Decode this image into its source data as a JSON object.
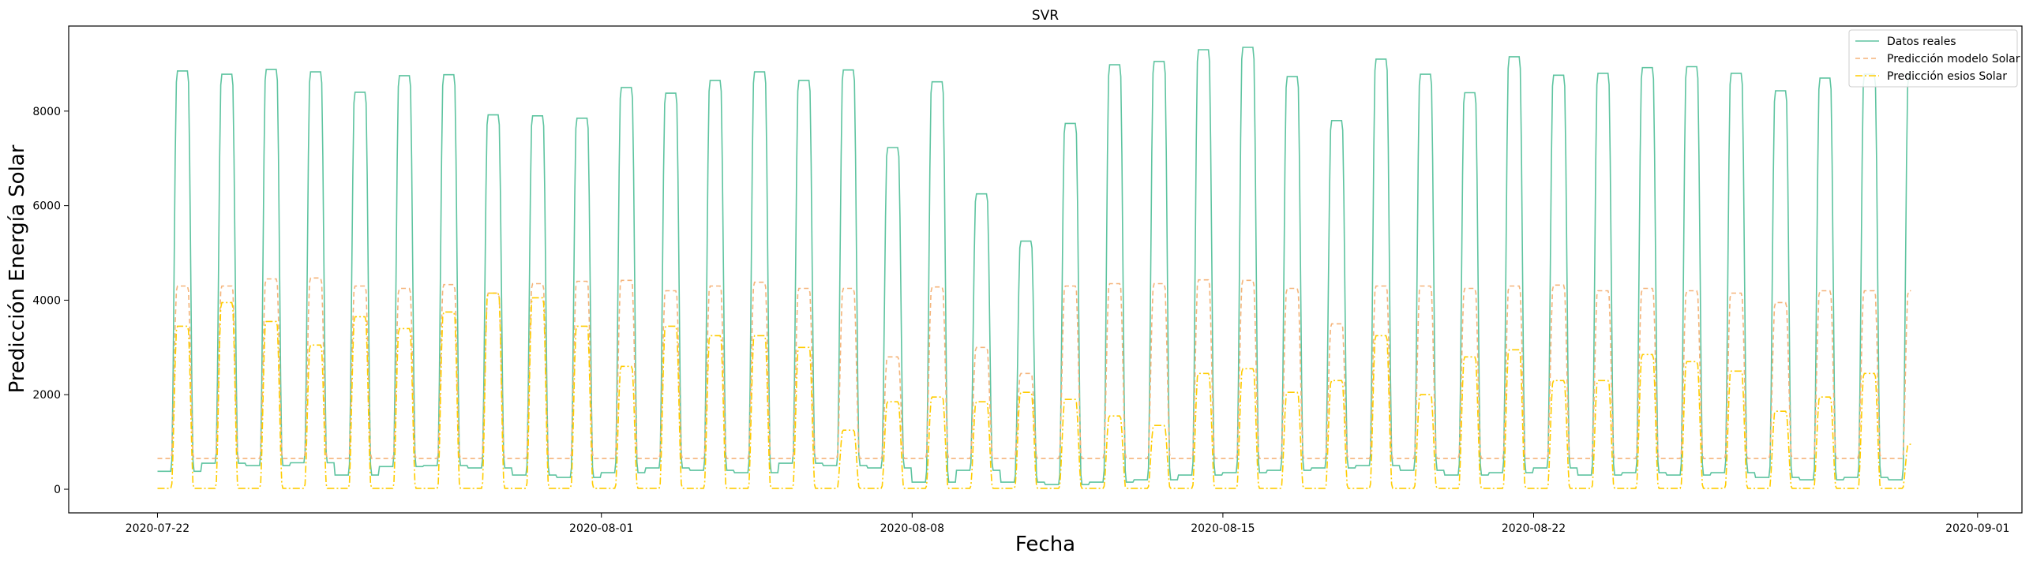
{
  "chart_data": {
    "type": "line",
    "title": "SVR",
    "xlabel": "Fecha",
    "ylabel": "Predicción Energía Solar",
    "x_start": "2020-07-22",
    "x_end": "2020-08-30",
    "xlim": [
      "2020-07-20",
      "2020-09-02"
    ],
    "ylim": [
      -500,
      9800
    ],
    "x_ticks": [
      "2020-07-22",
      "2020-08-01",
      "2020-08-08",
      "2020-08-15",
      "2020-08-22",
      "2020-09-01"
    ],
    "y_ticks": [
      0,
      2000,
      4000,
      6000,
      8000
    ],
    "grid": false,
    "legend_position": "top-right",
    "series": [
      {
        "name": "Datos reales",
        "color": "#5ec4a0",
        "style": "solid",
        "night_min": [
          380,
          550,
          500,
          560,
          300,
          480,
          500,
          450,
          300,
          250,
          350,
          450,
          400,
          350,
          550,
          500,
          450,
          150,
          400,
          150,
          100,
          150,
          200,
          300,
          350,
          400,
          450,
          500,
          400,
          300,
          350,
          450,
          300,
          350,
          300,
          350,
          250,
          200,
          250,
          200
        ],
        "day_peak": [
          8850,
          8780,
          8880,
          8830,
          8400,
          8750,
          8770,
          7920,
          7900,
          7850,
          8500,
          8380,
          8650,
          8830,
          8650,
          8870,
          7230,
          8620,
          6250,
          5250,
          7740,
          8980,
          9050,
          9300,
          9350,
          8730,
          7800,
          9100,
          8780,
          8390,
          9150,
          8760,
          8800,
          8920,
          8940,
          8800,
          8430,
          8700,
          8780,
          8750
        ]
      },
      {
        "name": "Predicción modelo Solar",
        "color": "#f5b47a",
        "style": "dashed",
        "night_min": 650,
        "day_peak": [
          4300,
          4300,
          4450,
          4470,
          4300,
          4250,
          4330,
          4150,
          4350,
          4400,
          4420,
          4200,
          4300,
          4380,
          4250,
          4250,
          2800,
          4280,
          3000,
          2450,
          4300,
          4350,
          4350,
          4430,
          4420,
          4250,
          3500,
          4300,
          4300,
          4250,
          4300,
          4320,
          4200,
          4250,
          4200,
          4150,
          3950,
          4200,
          4200,
          4200
        ]
      },
      {
        "name": "Predicción esios Solar",
        "color": "#ffcc00",
        "style": "dashdot",
        "night_min": 20,
        "day_peak": [
          3450,
          3950,
          3550,
          3050,
          3650,
          3400,
          3750,
          4150,
          4050,
          3450,
          2600,
          3450,
          3250,
          3250,
          3000,
          1250,
          1850,
          1950,
          1850,
          2050,
          1900,
          1550,
          1350,
          2450,
          2550,
          2050,
          2300,
          3250,
          2000,
          2800,
          2950,
          2300,
          2300,
          2850,
          2700,
          2500,
          1650,
          1950,
          2450,
          950
        ]
      }
    ]
  }
}
